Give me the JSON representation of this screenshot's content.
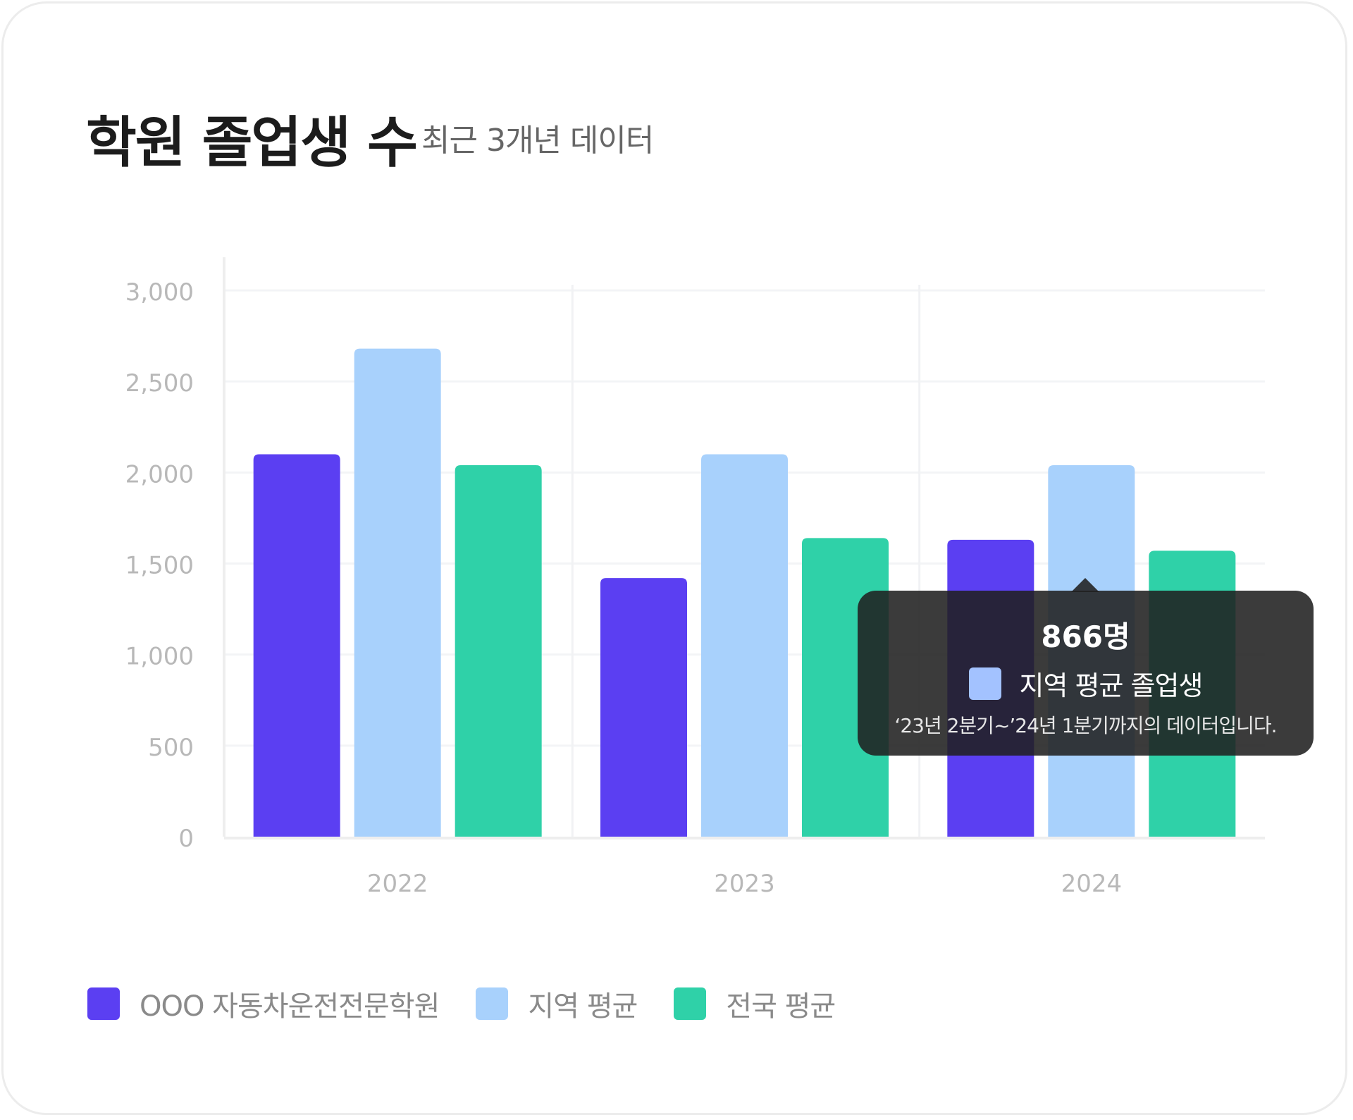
{
  "header": {
    "title": "학원 졸업생 수",
    "subtitle": "최근 3개년 데이터"
  },
  "chart_data": {
    "type": "bar",
    "categories": [
      "2022",
      "2023",
      "2024"
    ],
    "series": [
      {
        "name": "OOO 자동차운전전문학원",
        "color": "#5b3ff2",
        "values": [
          2100,
          1420,
          1630
        ]
      },
      {
        "name": "지역 평균",
        "color": "#a8d1fc",
        "values": [
          2680,
          2100,
          2040
        ]
      },
      {
        "name": "전국 평균",
        "color": "#2fd1a8",
        "values": [
          2040,
          1640,
          1570
        ]
      }
    ],
    "yticks": [
      "0",
      "500",
      "1,000",
      "1,500",
      "2,000",
      "2,500",
      "3,000"
    ],
    "ylim": [
      0,
      3000
    ],
    "grid": true,
    "legend": "bottom-left"
  },
  "tooltip": {
    "value": "866명",
    "label": "지역 평균 졸업생",
    "note": "‘23년 2분기~’24년 1분기까지의 데이터입니다.",
    "swatch_color": "#a3c2ff"
  }
}
